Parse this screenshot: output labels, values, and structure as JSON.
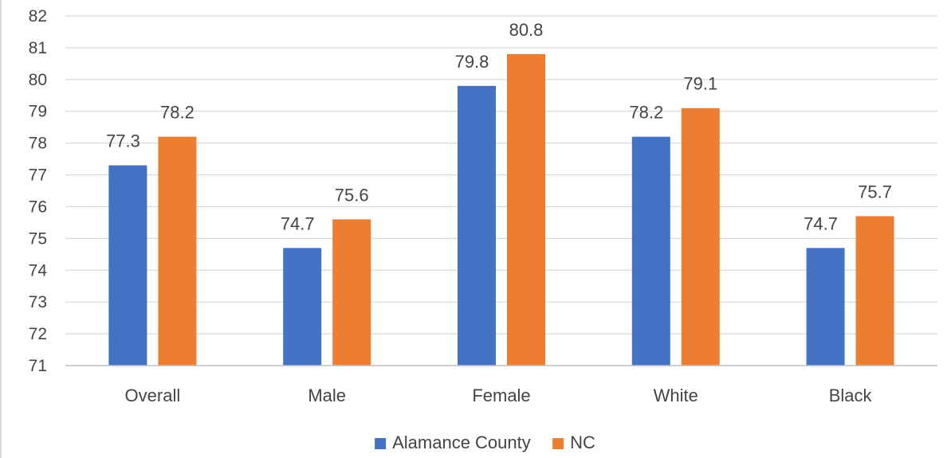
{
  "chart_data": {
    "type": "bar",
    "categories": [
      "Overall",
      "Male",
      "Female",
      "White",
      "Black"
    ],
    "series": [
      {
        "name": "Alamance County",
        "color": "#4472C4",
        "values": [
          77.3,
          74.7,
          79.8,
          78.2,
          74.7
        ]
      },
      {
        "name": "NC",
        "color": "#ED7D31",
        "values": [
          78.2,
          75.6,
          80.8,
          79.1,
          75.7
        ]
      }
    ],
    "ylim": [
      71,
      82
    ],
    "yticks": [
      "71",
      "72",
      "73",
      "74",
      "75",
      "76",
      "77",
      "78",
      "79",
      "80",
      "81",
      "82"
    ],
    "grid": true,
    "legend": "bottom-center",
    "data_labels": true
  }
}
